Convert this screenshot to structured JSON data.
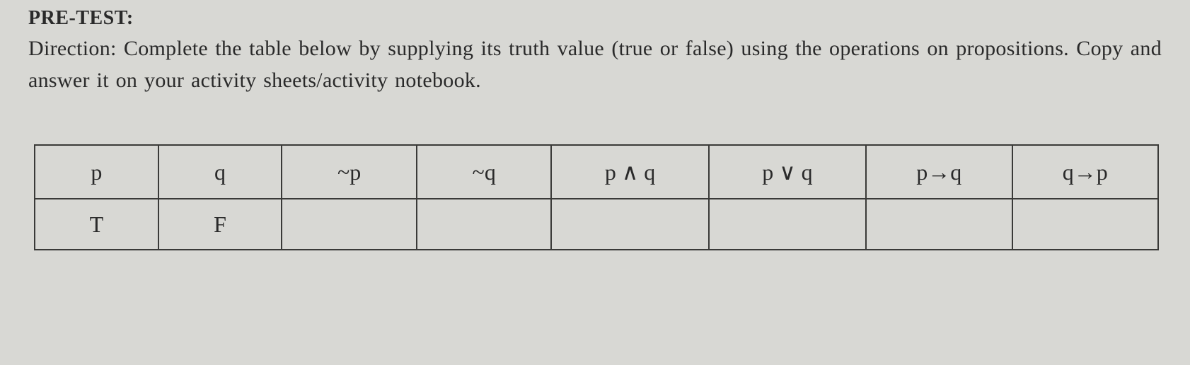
{
  "pretest_label": "PRE-TEST:",
  "direction": "Direction: Complete the table below by supplying its truth value (true or false) using the operations on propositions. Copy and answer it on your activity sheets/activity notebook.",
  "table": {
    "columns": [
      {
        "key": "p",
        "label": "p",
        "class": "col-p"
      },
      {
        "key": "q",
        "label": "q",
        "class": "col-q"
      },
      {
        "key": "np",
        "label": "~p",
        "class": "col-np"
      },
      {
        "key": "nq",
        "label": "~q",
        "class": "col-nq"
      },
      {
        "key": "pandq",
        "label": "p ∧ q",
        "class": "col-pandq"
      },
      {
        "key": "porq",
        "label": "p ∨ q",
        "class": "col-porq"
      },
      {
        "key": "pimpq",
        "label": "p→q",
        "class": "col-pimpq"
      },
      {
        "key": "qimpp",
        "label": "q→p",
        "class": "col-qimpp"
      }
    ],
    "rows": [
      {
        "p": "T",
        "q": "F",
        "np": "",
        "nq": "",
        "pandq": "",
        "porq": "",
        "pimpq": "",
        "qimpp": ""
      }
    ]
  }
}
